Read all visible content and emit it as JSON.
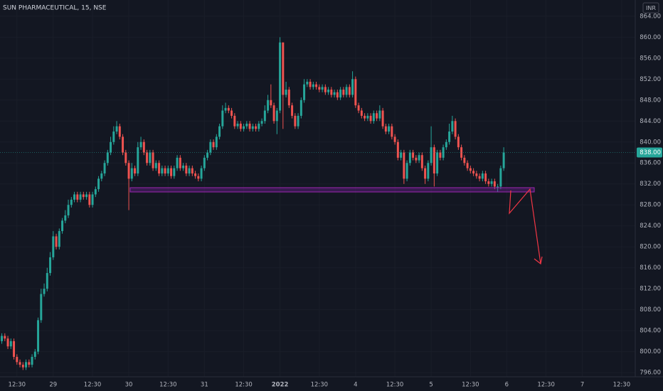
{
  "chart_data": {
    "type": "candlestick",
    "title": "SUN PHARMACEUTICAL, 15, NSE",
    "currency": "INR",
    "up_color": "#26a69a",
    "down_color": "#ef5350",
    "last_price": {
      "value": 838,
      "label": "838.00"
    },
    "ylim": [
      795.2,
      867.1
    ],
    "yticks": [
      {
        "value": 796,
        "label": "796.00"
      },
      {
        "value": 800,
        "label": "800.00"
      },
      {
        "value": 804,
        "label": "804.00"
      },
      {
        "value": 808,
        "label": "808.00"
      },
      {
        "value": 812,
        "label": "812.00"
      },
      {
        "value": 816,
        "label": "816.00"
      },
      {
        "value": 820,
        "label": "820.00"
      },
      {
        "value": 824,
        "label": "824.00"
      },
      {
        "value": 828,
        "label": "828.00"
      },
      {
        "value": 832,
        "label": "832.00"
      },
      {
        "value": 836,
        "label": "836.00"
      },
      {
        "value": 840,
        "label": "840.00"
      },
      {
        "value": 844,
        "label": "844.00"
      },
      {
        "value": 848,
        "label": "848.00"
      },
      {
        "value": 852,
        "label": "852.00"
      },
      {
        "value": 856,
        "label": "856.00"
      },
      {
        "value": 860,
        "label": "860.00"
      },
      {
        "value": 864,
        "label": "864.00"
      }
    ],
    "xlim": [
      -17.6,
      192.5
    ],
    "xticks": [
      {
        "value": -12,
        "label": "12:30"
      },
      {
        "value": 0,
        "label": "29"
      },
      {
        "value": 13,
        "label": "12:30"
      },
      {
        "value": 25,
        "label": "30"
      },
      {
        "value": 38,
        "label": "12:30"
      },
      {
        "value": 50,
        "label": "31"
      },
      {
        "value": 63,
        "label": "12:30"
      },
      {
        "value": 75,
        "label": "2022"
      },
      {
        "value": 88,
        "label": "12:30"
      },
      {
        "value": 100,
        "label": "4"
      },
      {
        "value": 113,
        "label": "12:30"
      },
      {
        "value": 125,
        "label": "5"
      },
      {
        "value": 138,
        "label": "12:30"
      },
      {
        "value": 150,
        "label": "6"
      },
      {
        "value": 163,
        "label": "12:30"
      },
      {
        "value": 175,
        "label": "7"
      },
      {
        "value": 188,
        "label": "12:30"
      }
    ],
    "x": [
      -17,
      -16,
      -15,
      -14,
      -13,
      -12,
      -11,
      -10,
      -9,
      -8,
      -7,
      -6,
      -5,
      -4,
      -3,
      -2,
      -1,
      0,
      1,
      2,
      3,
      4,
      5,
      6,
      7,
      8,
      9,
      10,
      11,
      12,
      13,
      14,
      15,
      16,
      17,
      18,
      19,
      20,
      21,
      22,
      23,
      24,
      25,
      26,
      27,
      28,
      29,
      30,
      31,
      32,
      33,
      34,
      35,
      36,
      37,
      38,
      39,
      40,
      41,
      42,
      43,
      44,
      45,
      46,
      47,
      48,
      49,
      50,
      51,
      52,
      53,
      54,
      55,
      56,
      57,
      58,
      59,
      60,
      61,
      62,
      63,
      64,
      65,
      66,
      67,
      68,
      69,
      70,
      71,
      72,
      73,
      74,
      75,
      76,
      77,
      78,
      79,
      80,
      81,
      82,
      83,
      84,
      85,
      86,
      87,
      88,
      89,
      90,
      91,
      92,
      93,
      94,
      95,
      96,
      97,
      98,
      99,
      100,
      101,
      102,
      103,
      104,
      105,
      106,
      107,
      108,
      109,
      110,
      111,
      112,
      113,
      114,
      115,
      116,
      117,
      118,
      119,
      120,
      121,
      122,
      123,
      124,
      125,
      126,
      127,
      128,
      129,
      130,
      131,
      132,
      133,
      134,
      135,
      136,
      137,
      138,
      139,
      140,
      141,
      142,
      143,
      144,
      145,
      146,
      147,
      148,
      149
    ],
    "ohlc": [
      [
        802,
        803.5,
        801.5,
        803
      ],
      [
        803,
        803.5,
        802,
        802.5
      ],
      [
        802.5,
        803,
        800.5,
        801
      ],
      [
        801,
        802.5,
        800.5,
        802
      ],
      [
        802,
        802.5,
        798.5,
        799
      ],
      [
        799,
        799.5,
        797.5,
        798
      ],
      [
        798,
        798.5,
        797,
        797.5
      ],
      [
        797.5,
        798,
        796.5,
        797
      ],
      [
        797,
        798.5,
        796.5,
        798
      ],
      [
        798,
        798.5,
        797,
        797.5
      ],
      [
        797.5,
        799.5,
        797,
        799
      ],
      [
        799,
        800.5,
        798.5,
        800
      ],
      [
        800,
        806.5,
        799.5,
        806
      ],
      [
        806,
        812,
        805.5,
        811
      ],
      [
        811,
        813,
        810.5,
        812
      ],
      [
        812,
        816,
        811.5,
        815
      ],
      [
        815,
        819,
        814.5,
        818
      ],
      [
        818,
        823,
        817.5,
        822
      ],
      [
        822,
        822.5,
        819.5,
        820
      ],
      [
        820,
        823.5,
        819.5,
        823
      ],
      [
        823,
        825.5,
        822.5,
        825
      ],
      [
        825,
        827,
        824.5,
        826
      ],
      [
        826,
        829,
        825.5,
        828
      ],
      [
        828,
        829.5,
        827.5,
        829
      ],
      [
        829,
        830.5,
        828.5,
        830
      ],
      [
        830,
        830.5,
        828.5,
        829
      ],
      [
        829,
        830.5,
        828.5,
        830
      ],
      [
        830,
        830.5,
        829,
        829.5
      ],
      [
        829.5,
        830.5,
        829,
        830
      ],
      [
        830,
        830.5,
        827.5,
        828
      ],
      [
        828,
        830.5,
        827.5,
        830
      ],
      [
        830,
        831.5,
        829.5,
        831
      ],
      [
        831,
        833.5,
        830.5,
        833
      ],
      [
        833,
        834.5,
        832.5,
        834
      ],
      [
        834,
        836.5,
        833.5,
        836
      ],
      [
        836,
        838.5,
        835.5,
        838
      ],
      [
        838,
        841,
        837.5,
        840
      ],
      [
        840,
        843,
        839.5,
        842
      ],
      [
        842,
        844,
        841.5,
        843
      ],
      [
        843,
        843.5,
        840.5,
        841
      ],
      [
        841,
        841.5,
        837.5,
        838
      ],
      [
        838,
        838.5,
        835.5,
        836
      ],
      [
        836,
        836.5,
        827,
        833
      ],
      [
        833,
        836,
        832.5,
        835
      ],
      [
        835,
        835.5,
        833.5,
        834
      ],
      [
        834,
        840,
        833.5,
        839
      ],
      [
        839,
        841,
        838.5,
        840
      ],
      [
        840,
        840.5,
        837.5,
        838
      ],
      [
        838,
        838.5,
        835.5,
        836
      ],
      [
        836,
        838.5,
        835.5,
        838
      ],
      [
        838,
        838.5,
        834.5,
        835
      ],
      [
        835,
        836.5,
        834.5,
        836
      ],
      [
        836,
        836.5,
        833.5,
        834
      ],
      [
        834,
        835.5,
        833.5,
        835
      ],
      [
        835,
        835.5,
        833.5,
        834
      ],
      [
        834,
        835.5,
        833.5,
        835
      ],
      [
        835,
        835.5,
        833,
        833.5
      ],
      [
        833.5,
        835.5,
        833,
        835
      ],
      [
        835,
        837.5,
        834.5,
        837
      ],
      [
        837,
        837.5,
        834.5,
        835
      ],
      [
        835,
        836,
        834.5,
        835.5
      ],
      [
        835.5,
        836,
        833.5,
        834
      ],
      [
        834,
        835.5,
        833.5,
        835
      ],
      [
        835,
        835.5,
        833.5,
        834
      ],
      [
        834,
        834.5,
        833,
        833.5
      ],
      [
        833.5,
        834,
        832.5,
        833
      ],
      [
        833,
        835.5,
        832.5,
        835
      ],
      [
        835,
        837.5,
        834.5,
        837
      ],
      [
        837,
        838.5,
        836.5,
        838
      ],
      [
        838,
        840.5,
        837.5,
        840
      ],
      [
        840,
        840.5,
        838.5,
        839
      ],
      [
        839,
        841.5,
        838.5,
        841
      ],
      [
        841,
        843.5,
        840.5,
        843
      ],
      [
        843,
        847,
        842.5,
        846
      ],
      [
        846,
        847.5,
        845.5,
        846.5
      ],
      [
        846.5,
        847,
        845.5,
        846
      ],
      [
        846,
        846.5,
        844.5,
        845
      ],
      [
        845,
        845.5,
        842.5,
        843
      ],
      [
        843,
        844,
        842.5,
        843.5
      ],
      [
        843.5,
        844,
        842,
        842.5
      ],
      [
        842.5,
        843.5,
        842,
        843
      ],
      [
        843,
        844,
        842.5,
        843.5
      ],
      [
        843.5,
        844,
        842,
        842.5
      ],
      [
        842.5,
        843.5,
        842,
        843
      ],
      [
        843,
        843.5,
        842,
        842.5
      ],
      [
        842.5,
        844,
        842,
        843.5
      ],
      [
        843.5,
        844.5,
        843,
        844
      ],
      [
        844,
        847,
        843.5,
        846
      ],
      [
        846,
        849,
        845.5,
        848
      ],
      [
        848,
        851,
        846.5,
        847
      ],
      [
        847,
        847.5,
        843.5,
        844
      ],
      [
        844,
        846.5,
        841.5,
        846
      ],
      [
        846,
        860,
        845.5,
        859
      ],
      [
        859,
        859,
        842.5,
        849
      ],
      [
        849,
        851.5,
        848.5,
        850
      ],
      [
        850,
        850.5,
        846.5,
        847
      ],
      [
        847,
        847.5,
        844.5,
        845
      ],
      [
        845,
        845.5,
        842.5,
        843
      ],
      [
        843,
        845.5,
        842.5,
        845
      ],
      [
        845,
        848.5,
        844.5,
        848
      ],
      [
        848,
        852,
        847.5,
        851
      ],
      [
        851,
        852,
        850.5,
        851.5
      ],
      [
        851.5,
        852,
        850,
        850.5
      ],
      [
        850.5,
        851.5,
        850,
        851
      ],
      [
        851,
        851.5,
        850,
        850.5
      ],
      [
        850.5,
        851,
        849.5,
        850
      ],
      [
        850,
        851,
        849.5,
        850.5
      ],
      [
        850.5,
        851,
        849,
        849.5
      ],
      [
        849.5,
        850.5,
        849,
        850
      ],
      [
        850,
        850.5,
        848.5,
        849
      ],
      [
        849,
        850,
        848.5,
        849.5
      ],
      [
        849.5,
        850,
        848,
        848.5
      ],
      [
        848.5,
        850.5,
        848,
        850
      ],
      [
        850,
        850.5,
        848.5,
        849
      ],
      [
        849,
        851,
        848.5,
        850.5
      ],
      [
        850.5,
        851,
        848.5,
        849
      ],
      [
        849,
        853.5,
        848.5,
        852
      ],
      [
        852,
        852.5,
        846.5,
        847
      ],
      [
        847,
        847.5,
        845.5,
        846
      ],
      [
        846,
        846.5,
        844.5,
        845
      ],
      [
        845,
        845.5,
        844,
        844.5
      ],
      [
        844.5,
        845.5,
        844,
        845
      ],
      [
        845,
        845.5,
        843.5,
        844
      ],
      [
        844,
        846,
        843.5,
        845.5
      ],
      [
        845.5,
        846,
        844,
        844.5
      ],
      [
        844.5,
        847,
        844,
        846
      ],
      [
        846,
        846.5,
        842.5,
        843
      ],
      [
        843,
        843.5,
        841.5,
        842
      ],
      [
        842,
        843.5,
        841.5,
        843
      ],
      [
        843,
        843.5,
        840.5,
        841
      ],
      [
        841,
        841.5,
        839.5,
        840
      ],
      [
        840,
        840.5,
        836.5,
        837
      ],
      [
        837,
        838.5,
        836.5,
        838
      ],
      [
        838,
        838.5,
        832,
        833
      ],
      [
        833,
        836.5,
        832.5,
        836
      ],
      [
        836,
        838.5,
        835.5,
        838
      ],
      [
        838,
        838.5,
        836.5,
        837
      ],
      [
        837,
        837.5,
        836,
        836.5
      ],
      [
        836.5,
        838,
        836,
        837.5
      ],
      [
        837.5,
        838,
        834.5,
        835
      ],
      [
        835,
        835.5,
        832,
        833
      ],
      [
        833,
        836.5,
        832.5,
        836
      ],
      [
        836,
        843,
        835.5,
        839
      ],
      [
        839,
        839.5,
        831.5,
        834
      ],
      [
        834,
        838.5,
        833.5,
        838
      ],
      [
        838,
        838.5,
        836.5,
        837
      ],
      [
        837,
        839.5,
        836.5,
        839
      ],
      [
        839,
        840.5,
        838.5,
        840
      ],
      [
        840,
        843.5,
        839.5,
        842
      ],
      [
        842,
        845,
        841.5,
        844
      ],
      [
        844,
        844.5,
        840.5,
        841
      ],
      [
        841,
        841.5,
        838.5,
        839
      ],
      [
        839,
        839.5,
        836.5,
        837
      ],
      [
        837,
        837.5,
        835.5,
        836
      ],
      [
        836,
        836.5,
        834.5,
        835
      ],
      [
        835,
        835.5,
        834,
        834.5
      ],
      [
        834.5,
        835,
        833.5,
        834
      ],
      [
        834,
        834.5,
        833,
        833.5
      ],
      [
        833.5,
        834,
        832.5,
        833
      ],
      [
        833,
        834.5,
        832.5,
        834
      ],
      [
        834,
        834.5,
        832,
        832.5
      ],
      [
        832.5,
        833,
        831.5,
        832
      ],
      [
        832,
        833,
        831.5,
        832.5
      ],
      [
        832.5,
        833,
        831,
        831.5
      ],
      [
        831.5,
        832,
        830.5,
        831.5
      ],
      [
        831.5,
        835.5,
        831,
        835
      ],
      [
        835,
        839,
        834.5,
        838
      ]
    ]
  }
}
